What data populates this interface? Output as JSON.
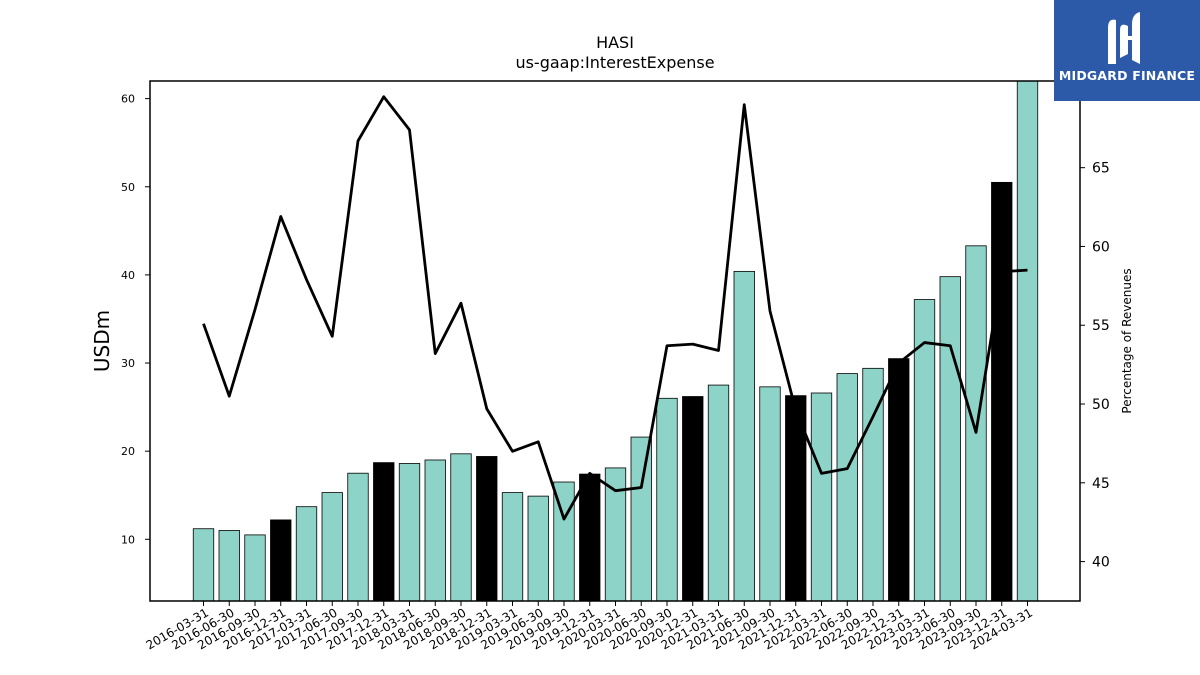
{
  "chart_data": {
    "type": "bar",
    "title": "HASI",
    "subtitle": "us-gaap:InterestExpense",
    "ylabel_left": "USDm",
    "ylabel_right": "Percentage of Revenues",
    "categories": [
      "2016-03-31",
      "2016-06-30",
      "2016-09-30",
      "2016-12-31",
      "2017-03-31",
      "2017-06-30",
      "2017-09-30",
      "2017-12-31",
      "2018-03-31",
      "2018-06-30",
      "2018-09-30",
      "2018-12-31",
      "2019-03-31",
      "2019-06-30",
      "2019-09-30",
      "2019-12-31",
      "2020-03-31",
      "2020-06-30",
      "2020-09-30",
      "2020-12-31",
      "2021-03-31",
      "2021-06-30",
      "2021-09-30",
      "2021-12-31",
      "2022-03-31",
      "2022-06-30",
      "2022-09-30",
      "2022-12-31",
      "2023-03-31",
      "2023-06-30",
      "2023-09-30",
      "2023-12-31",
      "2024-03-31"
    ],
    "series": [
      {
        "type": "bar",
        "axis": "left",
        "values": [
          11.2,
          11.0,
          10.5,
          12.2,
          13.7,
          15.3,
          17.5,
          18.7,
          18.6,
          19.0,
          19.7,
          19.4,
          15.3,
          14.9,
          16.5,
          17.4,
          18.1,
          21.6,
          26.0,
          26.2,
          27.5,
          40.4,
          27.3,
          26.3,
          26.6,
          28.8,
          29.4,
          30.5,
          37.2,
          39.8,
          43.3,
          50.5,
          62.0
        ],
        "colors_by_index": {
          "default": "#8dd3c7",
          "year_end": "#000000",
          "year_end_indices": [
            3,
            7,
            11,
            15,
            19,
            23,
            27,
            31
          ]
        }
      },
      {
        "type": "line",
        "axis": "right",
        "color": "#000000",
        "values": [
          55.1,
          50.5,
          56.0,
          61.9,
          57.9,
          54.3,
          66.7,
          69.5,
          67.4,
          53.2,
          56.4,
          49.7,
          47.0,
          47.6,
          42.7,
          45.6,
          44.5,
          44.7,
          53.7,
          53.8,
          53.4,
          69.0,
          55.9,
          49.6,
          45.6,
          45.9,
          49.2,
          52.6,
          53.9,
          53.7,
          48.2,
          58.4,
          58.5
        ]
      }
    ],
    "ylim_left": [
      3,
      62
    ],
    "yticks_left": [
      10,
      20,
      30,
      40,
      50,
      60
    ],
    "ylim_right": [
      37.5,
      70.5
    ],
    "yticks_right": [
      40,
      45,
      50,
      55,
      60,
      65
    ],
    "grid": false,
    "legend": "none"
  },
  "logo": {
    "text": "MIDGARD FINANCE",
    "background": "#2d5aa8"
  }
}
